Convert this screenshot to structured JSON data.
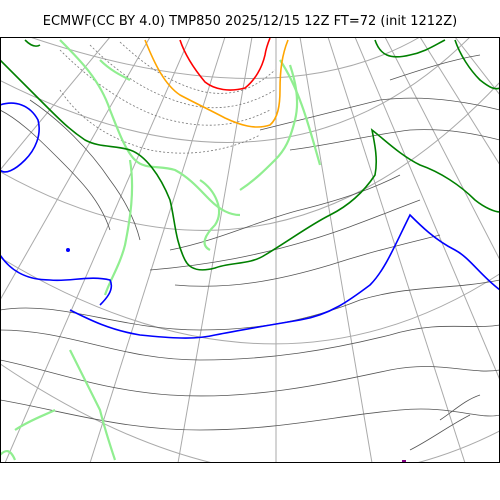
{
  "title": "ECMWF(CC BY 4.0) TMP850 2025/12/15 12Z FT=72 (init 1212Z)",
  "colors": {
    "coastline": "#90ee90",
    "graticule": "#aaaaaa",
    "isotherm": "#555555",
    "isotherm_dotted": "#777777",
    "zero_line": "#0000ff",
    "minus6_line": "#008000",
    "minus12_line": "#ffa500",
    "minus18_line": "#ff0000",
    "marker": "#800080"
  }
}
